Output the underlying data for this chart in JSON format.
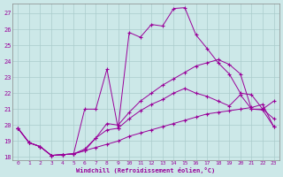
{
  "xlabel": "Windchill (Refroidissement éolien,°C)",
  "bg_color": "#cce8e8",
  "grid_color": "#aacccc",
  "line_color": "#990099",
  "xlim": [
    -0.5,
    23.5
  ],
  "ylim": [
    17.8,
    27.6
  ],
  "yticks": [
    18,
    19,
    20,
    21,
    22,
    23,
    24,
    25,
    26,
    27
  ],
  "xticks": [
    0,
    1,
    2,
    3,
    4,
    5,
    6,
    7,
    8,
    9,
    10,
    11,
    12,
    13,
    14,
    15,
    16,
    17,
    18,
    19,
    20,
    21,
    22,
    23
  ],
  "line1_x": [
    0,
    1,
    2,
    3,
    4,
    5,
    6,
    7,
    8,
    9,
    10,
    11,
    12,
    13,
    14,
    15,
    16,
    17,
    18,
    19,
    20,
    21,
    22,
    23
  ],
  "line1_y": [
    19.8,
    18.9,
    18.65,
    18.1,
    18.15,
    18.2,
    18.4,
    19.2,
    20.1,
    20.0,
    20.8,
    21.5,
    22.0,
    22.5,
    22.9,
    23.3,
    23.7,
    23.9,
    24.1,
    23.8,
    23.2,
    21.0,
    20.95,
    19.9
  ],
  "line2_x": [
    0,
    1,
    2,
    3,
    4,
    5,
    6,
    7,
    8,
    9,
    10,
    11,
    12,
    13,
    14,
    15,
    16,
    17,
    18,
    19,
    20,
    21,
    22,
    23
  ],
  "line2_y": [
    19.8,
    18.9,
    18.65,
    18.1,
    18.15,
    18.2,
    21.0,
    21.0,
    23.5,
    19.8,
    25.8,
    25.5,
    26.3,
    26.2,
    27.3,
    27.35,
    25.65,
    24.8,
    23.9,
    23.2,
    22.0,
    21.9,
    21.0,
    20.4
  ],
  "line3_x": [
    0,
    1,
    2,
    3,
    4,
    5,
    6,
    7,
    8,
    9,
    10,
    11,
    12,
    13,
    14,
    15,
    16,
    17,
    18,
    19,
    20,
    21,
    22,
    23
  ],
  "line3_y": [
    19.8,
    18.9,
    18.65,
    18.1,
    18.15,
    18.2,
    18.5,
    19.2,
    19.7,
    19.8,
    20.4,
    20.9,
    21.3,
    21.6,
    22.0,
    22.3,
    22.0,
    21.8,
    21.5,
    21.2,
    21.9,
    21.0,
    21.0,
    21.5
  ],
  "line4_x": [
    0,
    1,
    2,
    3,
    4,
    5,
    6,
    7,
    8,
    9,
    10,
    11,
    12,
    13,
    14,
    15,
    16,
    17,
    18,
    19,
    20,
    21,
    22,
    23
  ],
  "line4_y": [
    19.8,
    18.9,
    18.65,
    18.1,
    18.15,
    18.2,
    18.4,
    18.6,
    18.8,
    19.0,
    19.3,
    19.5,
    19.7,
    19.9,
    20.1,
    20.3,
    20.5,
    20.7,
    20.8,
    20.9,
    21.0,
    21.1,
    21.3,
    19.9
  ]
}
